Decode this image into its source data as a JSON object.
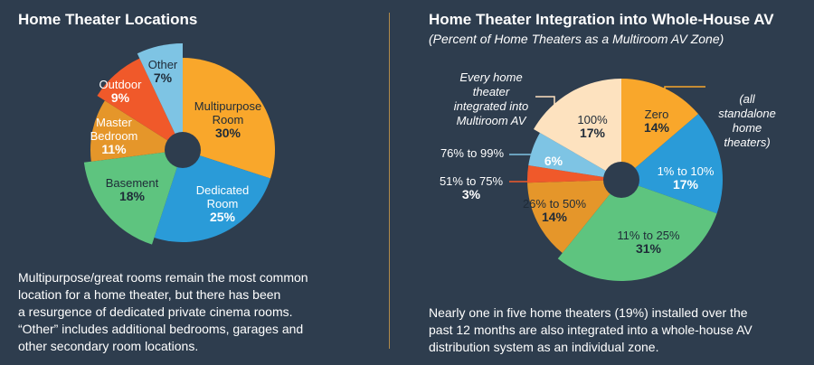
{
  "left": {
    "title": "Home Theater Locations",
    "caption_lines": [
      "Multipurpose/great rooms remain the most common",
      "location for a home theater, but there has been",
      "a resurgence of dedicated private cinema rooms.",
      "“Other” includes additional bedrooms, garages and",
      "other secondary room locations."
    ]
  },
  "right": {
    "title": "Home Theater Integration into Whole-House AV",
    "subtitle": "(Percent of Home Theaters as a Multiroom AV Zone)",
    "caption_lines": [
      "Nearly one in five home theaters (19%) installed over the",
      "past 12 months are also integrated into a whole-house AV",
      "distribution system as an individual zone."
    ],
    "annotation_every": [
      "Every home",
      "theater",
      "integrated into",
      "Multiroom AV"
    ],
    "annotation_zero": [
      "(all",
      "standalone",
      "home",
      "theaters)"
    ]
  },
  "chart_data": [
    {
      "type": "pie",
      "title": "Home Theater Locations",
      "categories": [
        "Multipurpose Room",
        "Dedicated Room",
        "Basement",
        "Master Bedroom",
        "Outdoor",
        "Other"
      ],
      "values": [
        30,
        25,
        18,
        11,
        9,
        7
      ],
      "value_labels": [
        "30%",
        "25%",
        "18%",
        "11%",
        "9%",
        "7%"
      ],
      "colors": [
        "#f9a72b",
        "#2a9bd8",
        "#5ec47f",
        "#e5962a",
        "#f0592a",
        "#7ec4e4"
      ]
    },
    {
      "type": "pie",
      "title": "Home Theater Integration into Whole-House AV",
      "subtitle": "(Percent of Home Theaters as a Multiroom AV Zone)",
      "categories": [
        "Zero",
        "1% to 10%",
        "11% to 25%",
        "26% to 50%",
        "51% to 75%",
        "76% to 99%",
        "100%"
      ],
      "values": [
        14,
        17,
        31,
        14,
        3,
        6,
        17
      ],
      "value_labels": [
        "14%",
        "17%",
        "31%",
        "14%",
        "3%",
        "6%",
        "17%"
      ],
      "colors": [
        "#f9a72b",
        "#2a9bd8",
        "#5ec47f",
        "#e5962a",
        "#f0592a",
        "#7ec4e4",
        "#fde2bf"
      ]
    }
  ]
}
